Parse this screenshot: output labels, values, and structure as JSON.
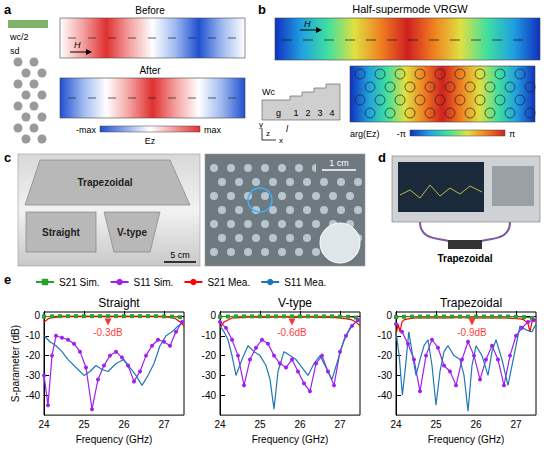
{
  "panels": {
    "a": {
      "label": "a",
      "lattice_labels": [
        "wc/2",
        "sd"
      ],
      "states": [
        "Before",
        "After"
      ],
      "field_label": "H",
      "colorbar": {
        "title": "Ez",
        "min_label": "-max",
        "max_label": "max"
      }
    },
    "b": {
      "label": "b",
      "title": "Half-supermode VRGW",
      "field_label": "H",
      "dimensions": [
        "Wc",
        "g",
        "l"
      ],
      "sections": [
        "1",
        "2",
        "3",
        "4"
      ],
      "axes": [
        "x",
        "y",
        "z"
      ],
      "colorbar": {
        "title": "arg(Ez)",
        "min_label": "-π",
        "max_label": "π"
      }
    },
    "c": {
      "label": "c",
      "samples": [
        "Trapezoidal",
        "Straight",
        "V-type"
      ],
      "scale_bars": [
        "5 cm",
        "1 cm"
      ]
    },
    "d": {
      "label": "d",
      "sample": "Trapezoidal"
    },
    "e": {
      "label": "e"
    }
  },
  "chart_data": [
    {
      "type": "line",
      "title": "Straight",
      "x_label": "Frequency (GHz)",
      "y_label": "S-parameter (dB)",
      "xlim": [
        24,
        27.5
      ],
      "xticks": [
        24,
        25,
        26,
        27
      ],
      "ylim": [
        -50,
        2
      ],
      "yticks": [
        0,
        -10,
        -20,
        -30,
        -40
      ],
      "grid": false,
      "legend": "top",
      "annotations": [
        {
          "text": "-0.3dB",
          "x": 25.6,
          "y": -3,
          "color": "#ff0000"
        }
      ],
      "series": [
        {
          "name": "S21 Sim.",
          "color": "#2ca02c",
          "marker": "square",
          "x": [
            24.0,
            24.2,
            24.4,
            24.6,
            24.8,
            25.0,
            25.2,
            25.4,
            25.6,
            25.8,
            26.0,
            26.2,
            26.4,
            26.6,
            26.8,
            27.0,
            27.2,
            27.4
          ],
          "values": [
            -0.3,
            -0.2,
            -0.1,
            -0.1,
            -0.1,
            -0.1,
            -0.1,
            -0.1,
            -0.1,
            -0.1,
            -0.1,
            -0.1,
            -0.1,
            -0.1,
            -0.1,
            -0.2,
            -0.3,
            -0.6
          ]
        },
        {
          "name": "S11 Sim.",
          "color": "#a020f0",
          "marker": "circle",
          "x": [
            24.0,
            24.1,
            24.2,
            24.3,
            24.45,
            24.6,
            24.75,
            24.9,
            25.05,
            25.2,
            25.35,
            25.5,
            25.65,
            25.8,
            25.95,
            26.1,
            26.25,
            26.4,
            26.55,
            26.7,
            26.85,
            27.0,
            27.15,
            27.3,
            27.45
          ],
          "values": [
            -30,
            -45,
            -20,
            -10,
            -11,
            -12,
            -14,
            -18,
            -26,
            -47,
            -32,
            -25,
            -20,
            -18,
            -21,
            -25,
            -33,
            -28,
            -20,
            -15,
            -12,
            -13,
            -15,
            -8,
            -3
          ]
        },
        {
          "name": "S21 Mea.",
          "color": "#ff0000",
          "marker": "none",
          "x": [
            24.0,
            24.1,
            24.2,
            24.4,
            24.6,
            24.8,
            25.0,
            25.2,
            25.4,
            25.6,
            25.8,
            26.0,
            26.2,
            26.4,
            26.6,
            26.8,
            27.0,
            27.2,
            27.3,
            27.4,
            27.5
          ],
          "values": [
            -3,
            -1.5,
            -0.8,
            -0.5,
            -0.4,
            -0.3,
            -0.3,
            -0.4,
            -0.3,
            -0.3,
            -0.3,
            -0.4,
            -0.3,
            -0.3,
            -0.4,
            -0.3,
            -0.5,
            -0.8,
            -1.5,
            -3,
            -5
          ]
        },
        {
          "name": "S11 Mea.",
          "color": "#1f77b4",
          "marker": "none",
          "x": [
            24.0,
            24.15,
            24.3,
            24.45,
            24.6,
            24.8,
            25.0,
            25.15,
            25.3,
            25.45,
            25.6,
            25.8,
            26.0,
            26.15,
            26.3,
            26.45,
            26.6,
            26.75,
            26.9,
            27.05,
            27.2,
            27.35,
            27.5
          ],
          "values": [
            -10,
            -13,
            -15,
            -18,
            -22,
            -26,
            -30,
            -28,
            -25,
            -27,
            -28,
            -24,
            -22,
            -26,
            -30,
            -35,
            -30,
            -24,
            -15,
            -10,
            -8,
            -5,
            -3
          ]
        }
      ]
    },
    {
      "type": "line",
      "title": "V-type",
      "x_label": "Frequency (GHz)",
      "xlim": [
        24,
        27.5
      ],
      "xticks": [
        24,
        25,
        26,
        27
      ],
      "ylim": [
        -50,
        2
      ],
      "yticks": [
        0,
        -10,
        -20,
        -30,
        -40
      ],
      "grid": false,
      "annotations": [
        {
          "text": "-0.6dB",
          "x": 25.8,
          "y": -3,
          "color": "#ff0000"
        }
      ],
      "series": [
        {
          "name": "S21 Sim.",
          "color": "#2ca02c",
          "marker": "square",
          "x": [
            24.0,
            24.2,
            24.4,
            24.6,
            24.8,
            25.0,
            25.2,
            25.4,
            25.6,
            25.8,
            26.0,
            26.2,
            26.4,
            26.6,
            26.8,
            27.0,
            27.2,
            27.4
          ],
          "values": [
            -0.4,
            -0.3,
            -0.2,
            -0.2,
            -0.2,
            -0.2,
            -0.2,
            -0.2,
            -0.2,
            -0.2,
            -0.2,
            -0.2,
            -0.2,
            -0.2,
            -0.2,
            -0.3,
            -0.4,
            -0.8
          ]
        },
        {
          "name": "S11 Sim.",
          "color": "#a020f0",
          "marker": "circle",
          "x": [
            24.0,
            24.15,
            24.3,
            24.45,
            24.6,
            24.75,
            24.9,
            25.05,
            25.2,
            25.35,
            25.5,
            25.65,
            25.8,
            25.95,
            26.1,
            26.25,
            26.4,
            26.55,
            26.7,
            26.85,
            27.0,
            27.15,
            27.3,
            27.45
          ],
          "values": [
            -3,
            -6,
            -12,
            -20,
            -35,
            -22,
            -16,
            -12,
            -14,
            -20,
            -24,
            -26,
            -22,
            -28,
            -34,
            -38,
            -24,
            -20,
            -28,
            -35,
            -18,
            -10,
            -5,
            -2
          ]
        },
        {
          "name": "S21 Mea.",
          "color": "#ff0000",
          "marker": "none",
          "x": [
            24.0,
            24.1,
            24.2,
            24.3,
            24.5,
            24.7,
            24.9,
            25.1,
            25.3,
            25.5,
            25.7,
            25.9,
            26.1,
            26.3,
            26.5,
            26.7,
            26.9,
            27.1,
            27.3,
            27.4,
            27.5
          ],
          "values": [
            -6,
            -3,
            -2,
            -1,
            -0.8,
            -0.6,
            -0.6,
            -0.7,
            -0.6,
            -0.6,
            -0.6,
            -0.7,
            -0.6,
            -0.6,
            -0.7,
            -0.6,
            -0.8,
            -1.2,
            -2,
            -3,
            -5
          ]
        },
        {
          "name": "S11 Mea.",
          "color": "#1f77b4",
          "marker": "none",
          "x": [
            24.0,
            24.1,
            24.2,
            24.3,
            24.4,
            24.55,
            24.7,
            24.85,
            25.0,
            25.15,
            25.25,
            25.35,
            25.45,
            25.6,
            25.75,
            25.9,
            26.05,
            26.2,
            26.35,
            26.5,
            26.65,
            26.8,
            26.95,
            27.1,
            27.25,
            27.4,
            27.5
          ],
          "values": [
            -5,
            -8,
            -12,
            -20,
            -30,
            -22,
            -15,
            -18,
            -20,
            -25,
            -32,
            -47,
            -28,
            -18,
            -20,
            -22,
            -26,
            -30,
            -24,
            -20,
            -26,
            -32,
            -22,
            -12,
            -6,
            -3,
            -2
          ]
        }
      ]
    },
    {
      "type": "line",
      "title": "Trapezoidal",
      "x_label": "Frequency (GHz)",
      "xlim": [
        24,
        27.5
      ],
      "xticks": [
        24,
        25,
        26,
        27
      ],
      "ylim": [
        -50,
        2
      ],
      "yticks": [
        0,
        -10,
        -20,
        -30,
        -40
      ],
      "grid": false,
      "annotations": [
        {
          "text": "-0.9dB",
          "x": 25.9,
          "y": -3,
          "color": "#ff0000"
        }
      ],
      "series": [
        {
          "name": "S21 Sim.",
          "color": "#2ca02c",
          "marker": "square",
          "x": [
            24.0,
            24.2,
            24.4,
            24.6,
            24.8,
            25.0,
            25.2,
            25.4,
            25.6,
            25.8,
            26.0,
            26.2,
            26.4,
            26.6,
            26.8,
            27.0,
            27.2,
            27.4
          ],
          "values": [
            -0.5,
            -0.4,
            -0.3,
            -0.3,
            -0.3,
            -0.3,
            -0.3,
            -0.3,
            -0.3,
            -0.3,
            -0.3,
            -0.3,
            -0.3,
            -0.3,
            -0.3,
            -0.4,
            -0.6,
            -1
          ]
        },
        {
          "name": "S11 Sim.",
          "color": "#a020f0",
          "marker": "circle",
          "x": [
            24.0,
            24.15,
            24.3,
            24.45,
            24.6,
            24.75,
            24.9,
            25.05,
            25.2,
            25.35,
            25.5,
            25.65,
            25.8,
            25.95,
            26.1,
            26.25,
            26.4,
            26.55,
            26.7,
            26.85,
            27.0,
            27.15,
            27.3,
            27.45
          ],
          "values": [
            -4,
            -8,
            -14,
            -22,
            -38,
            -20,
            -12,
            -16,
            -25,
            -28,
            -35,
            -22,
            -13,
            -20,
            -32,
            -22,
            -15,
            -22,
            -35,
            -20,
            -10,
            -6,
            -3,
            -2
          ]
        },
        {
          "name": "S21 Mea.",
          "color": "#ff0000",
          "marker": "none",
          "x": [
            24.0,
            24.05,
            24.1,
            24.15,
            24.2,
            24.3,
            24.4,
            24.5,
            24.7,
            24.9,
            25.1,
            25.3,
            25.5,
            25.7,
            25.9,
            26.1,
            26.3,
            26.5,
            26.7,
            26.9,
            27.1,
            27.2,
            27.3,
            27.35,
            27.4,
            27.5
          ],
          "values": [
            -10,
            -4,
            -8,
            -3,
            -2,
            -1.5,
            -1.2,
            -1,
            -0.9,
            -1,
            -0.9,
            -1,
            -0.9,
            -0.9,
            -1,
            -0.9,
            -1,
            -0.9,
            -1,
            -1.2,
            -1.5,
            -2,
            -4,
            -8,
            -3,
            -2
          ]
        },
        {
          "name": "S11 Mea.",
          "color": "#1f77b4",
          "marker": "none",
          "x": [
            24.0,
            24.08,
            24.16,
            24.24,
            24.32,
            24.4,
            24.5,
            24.6,
            24.7,
            24.8,
            24.9,
            25.0,
            25.1,
            25.2,
            25.3,
            25.45,
            25.6,
            25.7,
            25.8,
            25.9,
            26.0,
            26.15,
            26.3,
            26.4,
            26.5,
            26.65,
            26.8,
            26.95,
            27.1,
            27.25,
            27.4,
            27.5
          ],
          "values": [
            -8,
            -20,
            -40,
            -25,
            -8,
            -18,
            -30,
            -22,
            -15,
            -12,
            -25,
            -45,
            -28,
            -18,
            -15,
            -20,
            -22,
            -30,
            -48,
            -25,
            -15,
            -20,
            -30,
            -18,
            -12,
            -22,
            -35,
            -20,
            -5,
            -7,
            -8,
            -4
          ]
        }
      ]
    }
  ]
}
